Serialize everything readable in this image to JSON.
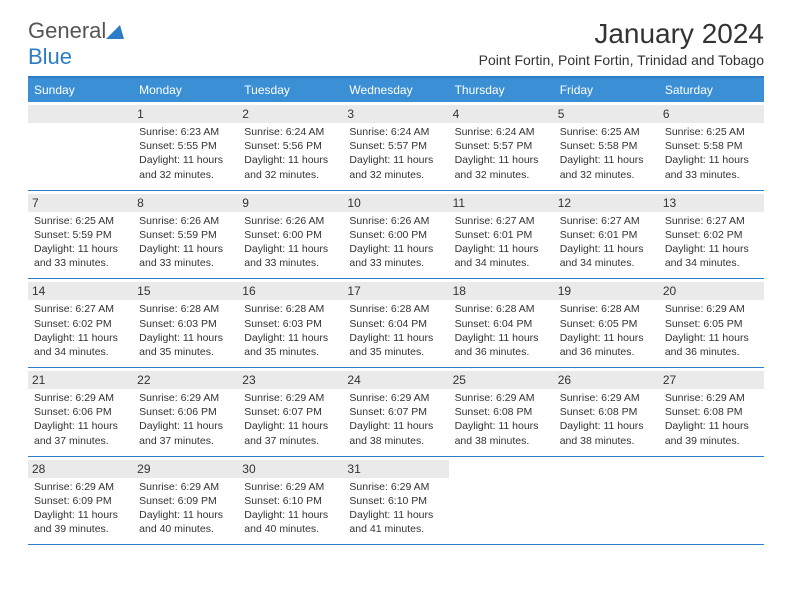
{
  "colors": {
    "header_bar": "#3b8fd4",
    "border": "#2d7dc6",
    "daynum_bg": "#eaeaea",
    "text": "#333333",
    "logo_gray": "#555555",
    "logo_blue": "#2d7dc6",
    "bg": "#ffffff"
  },
  "logo": {
    "part1": "General",
    "part2": "Blue"
  },
  "title": "January 2024",
  "location": "Point Fortin, Point Fortin, Trinidad and Tobago",
  "weekdays": [
    "Sunday",
    "Monday",
    "Tuesday",
    "Wednesday",
    "Thursday",
    "Friday",
    "Saturday"
  ],
  "weeks": [
    [
      {
        "n": "",
        "sr": "",
        "ss": "",
        "dl": ""
      },
      {
        "n": "1",
        "sr": "Sunrise: 6:23 AM",
        "ss": "Sunset: 5:55 PM",
        "dl": "Daylight: 11 hours and 32 minutes."
      },
      {
        "n": "2",
        "sr": "Sunrise: 6:24 AM",
        "ss": "Sunset: 5:56 PM",
        "dl": "Daylight: 11 hours and 32 minutes."
      },
      {
        "n": "3",
        "sr": "Sunrise: 6:24 AM",
        "ss": "Sunset: 5:57 PM",
        "dl": "Daylight: 11 hours and 32 minutes."
      },
      {
        "n": "4",
        "sr": "Sunrise: 6:24 AM",
        "ss": "Sunset: 5:57 PM",
        "dl": "Daylight: 11 hours and 32 minutes."
      },
      {
        "n": "5",
        "sr": "Sunrise: 6:25 AM",
        "ss": "Sunset: 5:58 PM",
        "dl": "Daylight: 11 hours and 32 minutes."
      },
      {
        "n": "6",
        "sr": "Sunrise: 6:25 AM",
        "ss": "Sunset: 5:58 PM",
        "dl": "Daylight: 11 hours and 33 minutes."
      }
    ],
    [
      {
        "n": "7",
        "sr": "Sunrise: 6:25 AM",
        "ss": "Sunset: 5:59 PM",
        "dl": "Daylight: 11 hours and 33 minutes."
      },
      {
        "n": "8",
        "sr": "Sunrise: 6:26 AM",
        "ss": "Sunset: 5:59 PM",
        "dl": "Daylight: 11 hours and 33 minutes."
      },
      {
        "n": "9",
        "sr": "Sunrise: 6:26 AM",
        "ss": "Sunset: 6:00 PM",
        "dl": "Daylight: 11 hours and 33 minutes."
      },
      {
        "n": "10",
        "sr": "Sunrise: 6:26 AM",
        "ss": "Sunset: 6:00 PM",
        "dl": "Daylight: 11 hours and 33 minutes."
      },
      {
        "n": "11",
        "sr": "Sunrise: 6:27 AM",
        "ss": "Sunset: 6:01 PM",
        "dl": "Daylight: 11 hours and 34 minutes."
      },
      {
        "n": "12",
        "sr": "Sunrise: 6:27 AM",
        "ss": "Sunset: 6:01 PM",
        "dl": "Daylight: 11 hours and 34 minutes."
      },
      {
        "n": "13",
        "sr": "Sunrise: 6:27 AM",
        "ss": "Sunset: 6:02 PM",
        "dl": "Daylight: 11 hours and 34 minutes."
      }
    ],
    [
      {
        "n": "14",
        "sr": "Sunrise: 6:27 AM",
        "ss": "Sunset: 6:02 PM",
        "dl": "Daylight: 11 hours and 34 minutes."
      },
      {
        "n": "15",
        "sr": "Sunrise: 6:28 AM",
        "ss": "Sunset: 6:03 PM",
        "dl": "Daylight: 11 hours and 35 minutes."
      },
      {
        "n": "16",
        "sr": "Sunrise: 6:28 AM",
        "ss": "Sunset: 6:03 PM",
        "dl": "Daylight: 11 hours and 35 minutes."
      },
      {
        "n": "17",
        "sr": "Sunrise: 6:28 AM",
        "ss": "Sunset: 6:04 PM",
        "dl": "Daylight: 11 hours and 35 minutes."
      },
      {
        "n": "18",
        "sr": "Sunrise: 6:28 AM",
        "ss": "Sunset: 6:04 PM",
        "dl": "Daylight: 11 hours and 36 minutes."
      },
      {
        "n": "19",
        "sr": "Sunrise: 6:28 AM",
        "ss": "Sunset: 6:05 PM",
        "dl": "Daylight: 11 hours and 36 minutes."
      },
      {
        "n": "20",
        "sr": "Sunrise: 6:29 AM",
        "ss": "Sunset: 6:05 PM",
        "dl": "Daylight: 11 hours and 36 minutes."
      }
    ],
    [
      {
        "n": "21",
        "sr": "Sunrise: 6:29 AM",
        "ss": "Sunset: 6:06 PM",
        "dl": "Daylight: 11 hours and 37 minutes."
      },
      {
        "n": "22",
        "sr": "Sunrise: 6:29 AM",
        "ss": "Sunset: 6:06 PM",
        "dl": "Daylight: 11 hours and 37 minutes."
      },
      {
        "n": "23",
        "sr": "Sunrise: 6:29 AM",
        "ss": "Sunset: 6:07 PM",
        "dl": "Daylight: 11 hours and 37 minutes."
      },
      {
        "n": "24",
        "sr": "Sunrise: 6:29 AM",
        "ss": "Sunset: 6:07 PM",
        "dl": "Daylight: 11 hours and 38 minutes."
      },
      {
        "n": "25",
        "sr": "Sunrise: 6:29 AM",
        "ss": "Sunset: 6:08 PM",
        "dl": "Daylight: 11 hours and 38 minutes."
      },
      {
        "n": "26",
        "sr": "Sunrise: 6:29 AM",
        "ss": "Sunset: 6:08 PM",
        "dl": "Daylight: 11 hours and 38 minutes."
      },
      {
        "n": "27",
        "sr": "Sunrise: 6:29 AM",
        "ss": "Sunset: 6:08 PM",
        "dl": "Daylight: 11 hours and 39 minutes."
      }
    ],
    [
      {
        "n": "28",
        "sr": "Sunrise: 6:29 AM",
        "ss": "Sunset: 6:09 PM",
        "dl": "Daylight: 11 hours and 39 minutes."
      },
      {
        "n": "29",
        "sr": "Sunrise: 6:29 AM",
        "ss": "Sunset: 6:09 PM",
        "dl": "Daylight: 11 hours and 40 minutes."
      },
      {
        "n": "30",
        "sr": "Sunrise: 6:29 AM",
        "ss": "Sunset: 6:10 PM",
        "dl": "Daylight: 11 hours and 40 minutes."
      },
      {
        "n": "31",
        "sr": "Sunrise: 6:29 AM",
        "ss": "Sunset: 6:10 PM",
        "dl": "Daylight: 11 hours and 41 minutes."
      },
      {
        "n": "",
        "sr": "",
        "ss": "",
        "dl": ""
      },
      {
        "n": "",
        "sr": "",
        "ss": "",
        "dl": ""
      },
      {
        "n": "",
        "sr": "",
        "ss": "",
        "dl": ""
      }
    ]
  ]
}
